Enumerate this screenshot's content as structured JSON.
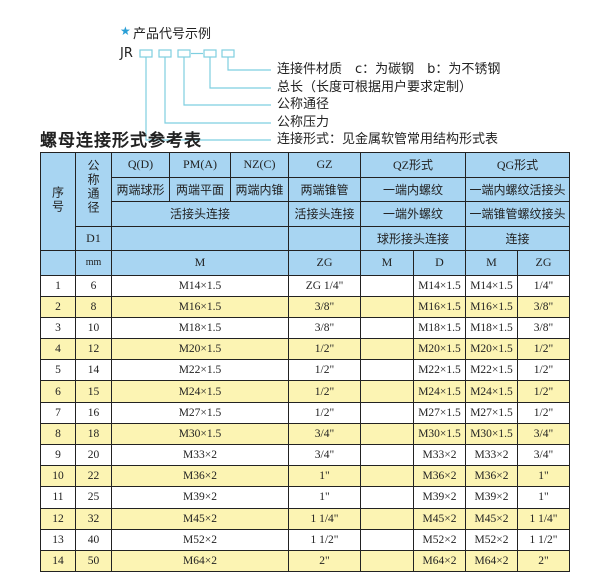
{
  "diagram": {
    "heading": "产品代号示例",
    "prefix": "JR",
    "labels": [
      "连接件材质　c：为碳钢　b：为不锈钢",
      "总长（长度可根据用户要求定制）",
      "公称通径",
      "公称压力",
      "连接形式：见金属软管常用结构形式表"
    ],
    "accent_color": "#7ecfe0"
  },
  "table_title": "螺母连接形式参考表",
  "table": {
    "header": {
      "no": "序号",
      "dn": "公称通径",
      "d1": "D1",
      "mm": "mm",
      "types": [
        "Q(D)",
        "PM(A)",
        "NZ(C)",
        "GZ",
        "QZ形式",
        "QG形式"
      ],
      "shapes": [
        "两端球形",
        "两端平面",
        "两端内锥",
        "两端锥管",
        "一端内螺纹",
        "一端内螺纹活接头"
      ],
      "conn_row1": [
        "活接头连接",
        "活接头连接",
        "一端外螺纹",
        "一端锥管螺纹接头"
      ],
      "conn_row2": [
        "球形接头连接",
        "连接"
      ],
      "units": [
        "M",
        "ZG",
        "M",
        "D",
        "M",
        "ZG"
      ]
    },
    "rows": [
      {
        "no": "1",
        "d1": "6",
        "m": "M14×1.5",
        "gz": "ZG 1/4\"",
        "qz_m": "",
        "qz_d": "M14×1.5",
        "qg_m": "M14×1.5",
        "qg_zg": "1/4\""
      },
      {
        "no": "2",
        "d1": "8",
        "m": "M16×1.5",
        "gz": "3/8\"",
        "qz_m": "",
        "qz_d": "M16×1.5",
        "qg_m": "M16×1.5",
        "qg_zg": "3/8\""
      },
      {
        "no": "3",
        "d1": "10",
        "m": "M18×1.5",
        "gz": "3/8\"",
        "qz_m": "",
        "qz_d": "M18×1.5",
        "qg_m": "M18×1.5",
        "qg_zg": "3/8\""
      },
      {
        "no": "4",
        "d1": "12",
        "m": "M20×1.5",
        "gz": "1/2\"",
        "qz_m": "",
        "qz_d": "M20×1.5",
        "qg_m": "M20×1.5",
        "qg_zg": "1/2\""
      },
      {
        "no": "5",
        "d1": "14",
        "m": "M22×1.5",
        "gz": "1/2\"",
        "qz_m": "",
        "qz_d": "M22×1.5",
        "qg_m": "M22×1.5",
        "qg_zg": "1/2\""
      },
      {
        "no": "6",
        "d1": "15",
        "m": "M24×1.5",
        "gz": "1/2\"",
        "qz_m": "",
        "qz_d": "M24×1.5",
        "qg_m": "M24×1.5",
        "qg_zg": "1/2\""
      },
      {
        "no": "7",
        "d1": "16",
        "m": "M27×1.5",
        "gz": "1/2\"",
        "qz_m": "",
        "qz_d": "M27×1.5",
        "qg_m": "M27×1.5",
        "qg_zg": "1/2\""
      },
      {
        "no": "8",
        "d1": "18",
        "m": "M30×1.5",
        "gz": "3/4\"",
        "qz_m": "",
        "qz_d": "M30×1.5",
        "qg_m": "M30×1.5",
        "qg_zg": "3/4\""
      },
      {
        "no": "9",
        "d1": "20",
        "m": "M33×2",
        "gz": "3/4\"",
        "qz_m": "",
        "qz_d": "M33×2",
        "qg_m": "M33×2",
        "qg_zg": "3/4\""
      },
      {
        "no": "10",
        "d1": "22",
        "m": "M36×2",
        "gz": "1\"",
        "qz_m": "",
        "qz_d": "M36×2",
        "qg_m": "M36×2",
        "qg_zg": "1\""
      },
      {
        "no": "11",
        "d1": "25",
        "m": "M39×2",
        "gz": "1\"",
        "qz_m": "",
        "qz_d": "M39×2",
        "qg_m": "M39×2",
        "qg_zg": "1\""
      },
      {
        "no": "12",
        "d1": "32",
        "m": "M45×2",
        "gz": "1 1/4\"",
        "qz_m": "",
        "qz_d": "M45×2",
        "qg_m": "M45×2",
        "qg_zg": "1 1/4\""
      },
      {
        "no": "13",
        "d1": "40",
        "m": "M52×2",
        "gz": "1 1/2\"",
        "qz_m": "",
        "qz_d": "M52×2",
        "qg_m": "M52×2",
        "qg_zg": "1 1/2\""
      },
      {
        "no": "14",
        "d1": "50",
        "m": "M64×2",
        "gz": "2\"",
        "qz_m": "",
        "qz_d": "M64×2",
        "qg_m": "M64×2",
        "qg_zg": "2\""
      }
    ],
    "colors": {
      "header": "#a8d5f2",
      "even_row": "#fcf4b3",
      "odd_row": "#ffffff",
      "border": "#222222"
    }
  }
}
